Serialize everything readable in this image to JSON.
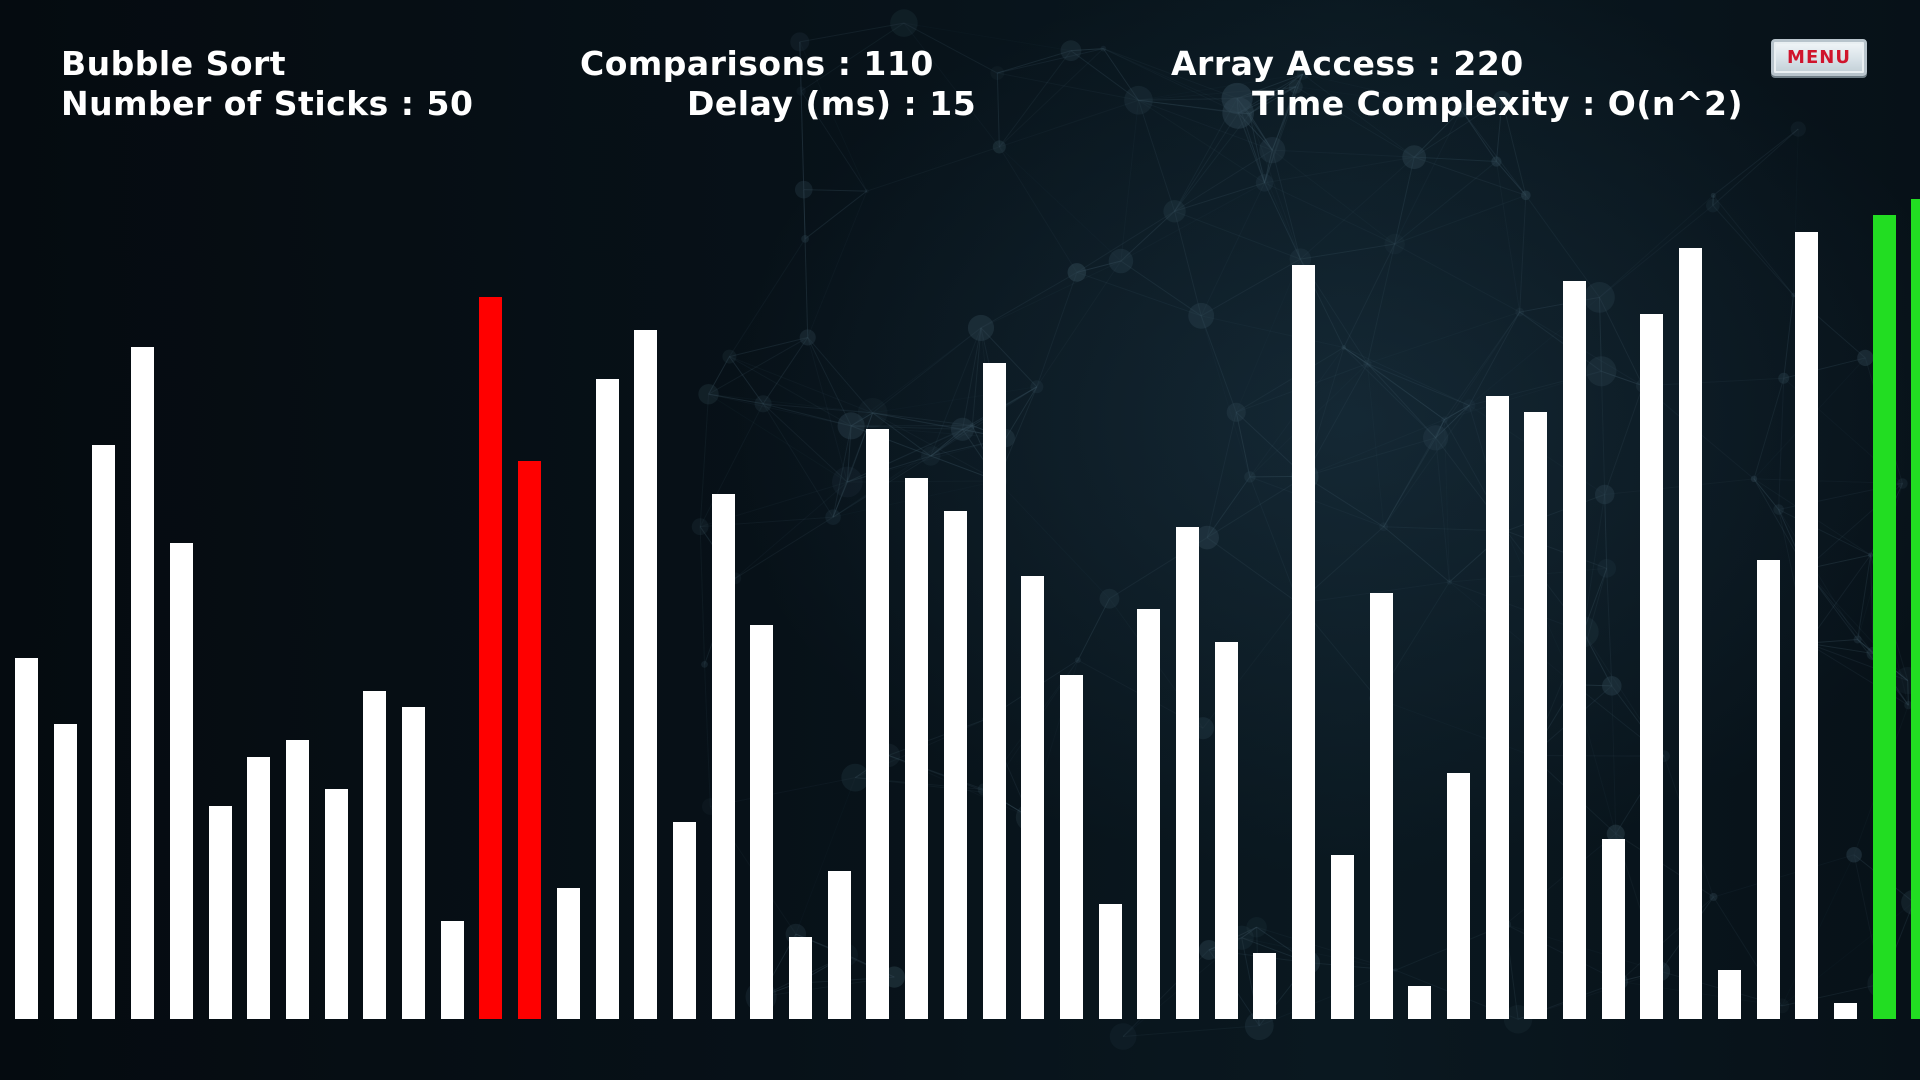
{
  "hud": {
    "algorithm": "Bubble Sort",
    "sticks_label": "Number of Sticks",
    "sticks_value": "50",
    "comparisons_label": "Comparisons",
    "comparisons_value": "110",
    "delay_label": "Delay (ms)",
    "delay_value": "15",
    "array_access_label": "Array Access",
    "array_access_value": "220",
    "complexity_label": "Time Complexity",
    "complexity_value": "O(n^2)",
    "separator": ":"
  },
  "menu": {
    "label": "MENU"
  },
  "colors": {
    "default": "#ffffff",
    "comparing": "#ff0000",
    "sorted": "#22dd22"
  },
  "sticks": {
    "max_value": 50,
    "values": [
      22,
      18,
      35,
      41,
      29,
      13,
      16,
      17,
      14,
      20,
      19,
      6,
      44,
      34,
      8,
      39,
      42,
      12,
      32,
      24,
      5,
      9,
      36,
      33,
      31,
      40,
      27,
      21,
      7,
      25,
      30,
      23,
      4,
      46,
      10,
      26,
      2,
      15,
      38,
      37,
      45,
      11,
      43,
      47,
      3,
      28,
      48,
      1,
      49,
      50
    ],
    "states": [
      "default",
      "default",
      "default",
      "default",
      "default",
      "default",
      "default",
      "default",
      "default",
      "default",
      "default",
      "default",
      "comparing",
      "comparing",
      "default",
      "default",
      "default",
      "default",
      "default",
      "default",
      "default",
      "default",
      "default",
      "default",
      "default",
      "default",
      "default",
      "default",
      "default",
      "default",
      "default",
      "default",
      "default",
      "default",
      "default",
      "default",
      "default",
      "default",
      "default",
      "default",
      "default",
      "default",
      "default",
      "default",
      "default",
      "default",
      "default",
      "default",
      "sorted",
      "sorted"
    ]
  }
}
